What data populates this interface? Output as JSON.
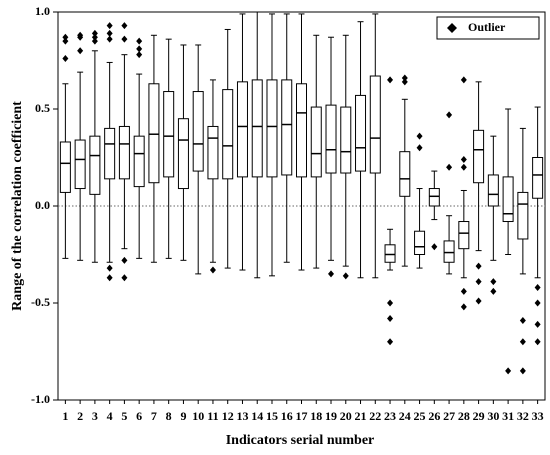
{
  "chart_data": {
    "type": "box",
    "xlabel": "Indicators serial number",
    "ylabel": "Range of the correlation coefficient",
    "legend": {
      "label": "Outlier",
      "position": "upper right"
    },
    "reference_line": 0,
    "ylim": [
      -1,
      1
    ],
    "yticks": [
      {
        "value": 1,
        "label": "1.0"
      },
      0.5,
      {
        "value": 0,
        "label": "0.0"
      },
      -0.5,
      {
        "value": -1,
        "label": "-1.0"
      }
    ],
    "categories": [
      "1",
      "2",
      "3",
      "4",
      "5",
      "6",
      "7",
      "8",
      "9",
      "10",
      "11",
      "12",
      "13",
      "14",
      "15",
      "16",
      "17",
      "18",
      "19",
      "20",
      "21",
      "22",
      "23",
      "24",
      "25",
      "26",
      "27",
      "28",
      "29",
      "30",
      "31",
      "32",
      "33"
    ],
    "boxes": [
      {
        "low": -0.27,
        "q1": 0.07,
        "median": 0.22,
        "q3": 0.33,
        "high": 0.63,
        "outliers": [
          0.87,
          0.85,
          0.76
        ]
      },
      {
        "low": -0.28,
        "q1": 0.09,
        "median": 0.24,
        "q3": 0.34,
        "high": 0.69,
        "outliers": [
          0.88,
          0.87,
          0.8
        ]
      },
      {
        "low": -0.29,
        "q1": 0.06,
        "median": 0.26,
        "q3": 0.36,
        "high": 0.8,
        "outliers": [
          0.89,
          0.87,
          0.85
        ]
      },
      {
        "low": -0.29,
        "q1": 0.14,
        "median": 0.32,
        "q3": 0.4,
        "high": 0.74,
        "outliers": [
          0.93,
          0.89,
          0.86,
          -0.32,
          -0.37
        ]
      },
      {
        "low": -0.22,
        "q1": 0.14,
        "median": 0.32,
        "q3": 0.41,
        "high": 0.78,
        "outliers": [
          0.93,
          0.86,
          -0.28,
          -0.37
        ]
      },
      {
        "low": -0.27,
        "q1": 0.1,
        "median": 0.27,
        "q3": 0.36,
        "high": 0.68,
        "outliers": [
          0.85,
          0.81,
          0.78
        ]
      },
      {
        "low": -0.29,
        "q1": 0.12,
        "median": 0.37,
        "q3": 0.63,
        "high": 0.88,
        "outliers": []
      },
      {
        "low": -0.27,
        "q1": 0.15,
        "median": 0.36,
        "q3": 0.59,
        "high": 0.86,
        "outliers": []
      },
      {
        "low": -0.28,
        "q1": 0.09,
        "median": 0.34,
        "q3": 0.45,
        "high": 0.83,
        "outliers": []
      },
      {
        "low": -0.35,
        "q1": 0.18,
        "median": 0.32,
        "q3": 0.59,
        "high": 0.83,
        "outliers": []
      },
      {
        "low": -0.29,
        "q1": 0.14,
        "median": 0.35,
        "q3": 0.41,
        "high": 0.65,
        "outliers": [
          -0.33
        ]
      },
      {
        "low": -0.32,
        "q1": 0.14,
        "median": 0.31,
        "q3": 0.6,
        "high": 0.91,
        "outliers": []
      },
      {
        "low": -0.33,
        "q1": 0.15,
        "median": 0.41,
        "q3": 0.64,
        "high": 0.99,
        "outliers": []
      },
      {
        "low": -0.37,
        "q1": 0.15,
        "median": 0.41,
        "q3": 0.65,
        "high": 1.0,
        "outliers": []
      },
      {
        "low": -0.36,
        "q1": 0.15,
        "median": 0.41,
        "q3": 0.65,
        "high": 0.99,
        "outliers": []
      },
      {
        "low": -0.29,
        "q1": 0.16,
        "median": 0.42,
        "q3": 0.65,
        "high": 0.99,
        "outliers": []
      },
      {
        "low": -0.33,
        "q1": 0.15,
        "median": 0.48,
        "q3": 0.63,
        "high": 0.99,
        "outliers": []
      },
      {
        "low": -0.32,
        "q1": 0.15,
        "median": 0.27,
        "q3": 0.51,
        "high": 0.88,
        "outliers": []
      },
      {
        "low": -0.28,
        "q1": 0.17,
        "median": 0.29,
        "q3": 0.52,
        "high": 0.87,
        "outliers": [
          -0.35
        ]
      },
      {
        "low": -0.31,
        "q1": 0.17,
        "median": 0.28,
        "q3": 0.51,
        "high": 0.88,
        "outliers": [
          -0.36
        ]
      },
      {
        "low": -0.37,
        "q1": 0.18,
        "median": 0.3,
        "q3": 0.57,
        "high": 0.95,
        "outliers": []
      },
      {
        "low": -0.37,
        "q1": 0.17,
        "median": 0.35,
        "q3": 0.67,
        "high": 0.99,
        "outliers": []
      },
      {
        "low": -0.33,
        "q1": -0.29,
        "median": -0.25,
        "q3": -0.2,
        "high": -0.12,
        "outliers": [
          0.65,
          -0.5,
          -0.58,
          -0.7
        ]
      },
      {
        "low": -0.31,
        "q1": 0.05,
        "median": 0.14,
        "q3": 0.28,
        "high": 0.55,
        "outliers": [
          0.66,
          0.64
        ]
      },
      {
        "low": -0.32,
        "q1": -0.25,
        "median": -0.21,
        "q3": -0.13,
        "high": 0.09,
        "outliers": [
          0.36,
          0.3
        ]
      },
      {
        "low": -0.07,
        "q1": 0.0,
        "median": 0.05,
        "q3": 0.09,
        "high": 0.18,
        "outliers": [
          -0.21
        ]
      },
      {
        "low": -0.35,
        "q1": -0.29,
        "median": -0.24,
        "q3": -0.18,
        "high": -0.05,
        "outliers": [
          0.47,
          0.2
        ]
      },
      {
        "low": -0.37,
        "q1": -0.22,
        "median": -0.14,
        "q3": -0.08,
        "high": 0.08,
        "outliers": [
          0.65,
          0.24,
          0.2,
          -0.44,
          -0.52
        ]
      },
      {
        "low": -0.23,
        "q1": 0.12,
        "median": 0.29,
        "q3": 0.39,
        "high": 0.64,
        "outliers": [
          -0.31,
          -0.39,
          -0.49
        ]
      },
      {
        "low": -0.28,
        "q1": 0.0,
        "median": 0.06,
        "q3": 0.16,
        "high": 0.36,
        "outliers": [
          -0.39,
          -0.44
        ]
      },
      {
        "low": -0.25,
        "q1": -0.08,
        "median": -0.04,
        "q3": 0.15,
        "high": 0.5,
        "outliers": [
          -0.85
        ]
      },
      {
        "low": -0.35,
        "q1": -0.17,
        "median": 0.01,
        "q3": 0.07,
        "high": 0.4,
        "outliers": [
          -0.59,
          -0.7,
          -0.85
        ]
      },
      {
        "low": -0.37,
        "q1": 0.04,
        "median": 0.16,
        "q3": 0.25,
        "high": 0.51,
        "outliers": [
          -0.42,
          -0.5,
          -0.61,
          -0.7
        ]
      }
    ]
  }
}
